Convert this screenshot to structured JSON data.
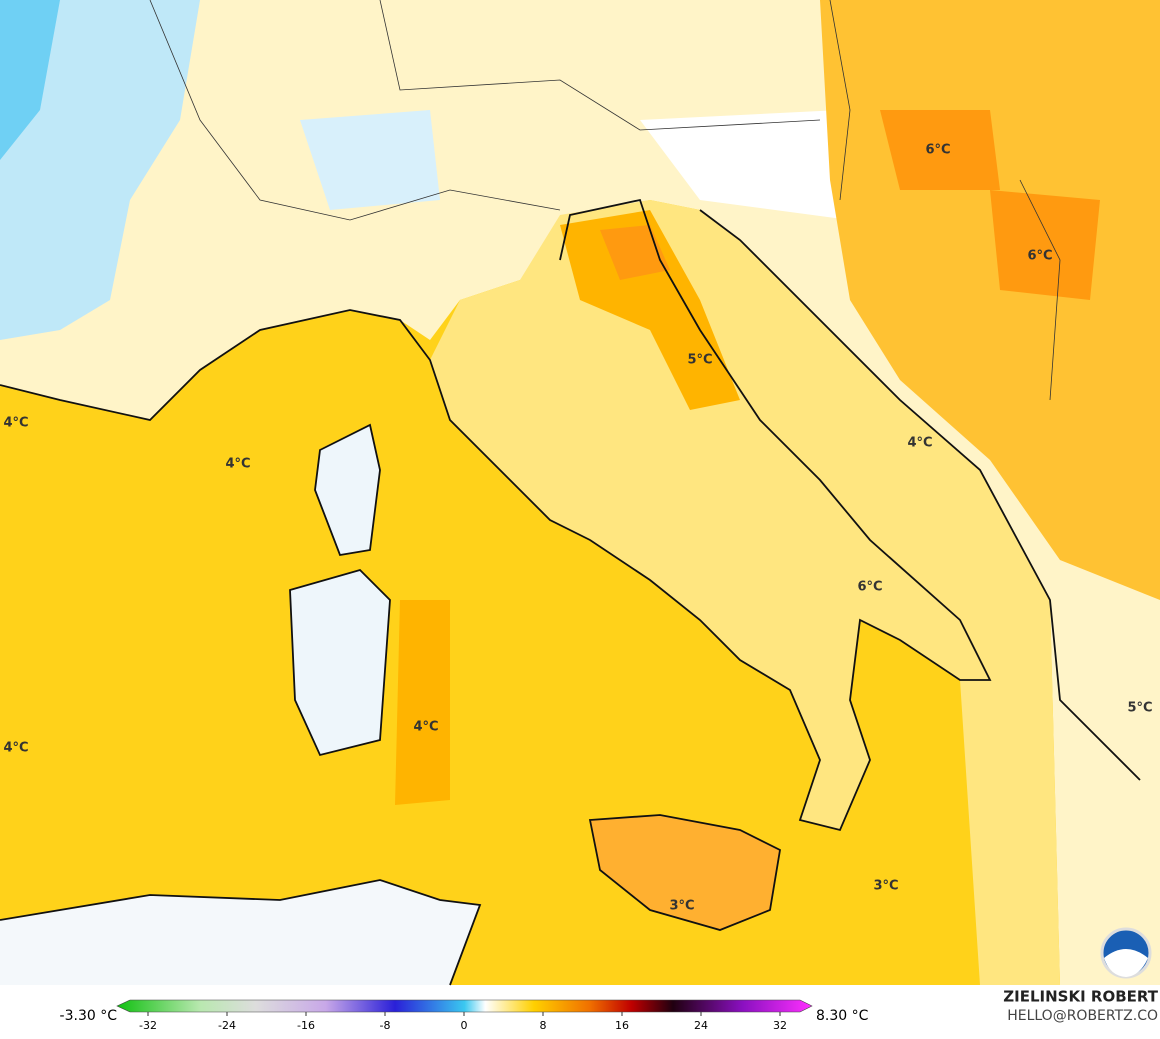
{
  "map": {
    "labels": [
      "6°C",
      "6°C",
      "5°C",
      "4°C",
      "4°C",
      "4°C",
      "6°C",
      "5°C",
      "4°C",
      "4°C",
      "3°C",
      "3°C"
    ]
  },
  "colorbar": {
    "min_label": "-3.30 °C",
    "max_label": "8.30 °C",
    "ticks": [
      -32,
      -24,
      -16,
      -8,
      0,
      8,
      16,
      24,
      32
    ]
  },
  "credit": {
    "author": "ZIELINSKI ROBERT",
    "contact": "HELLO@ROBERTZ.CO"
  }
}
